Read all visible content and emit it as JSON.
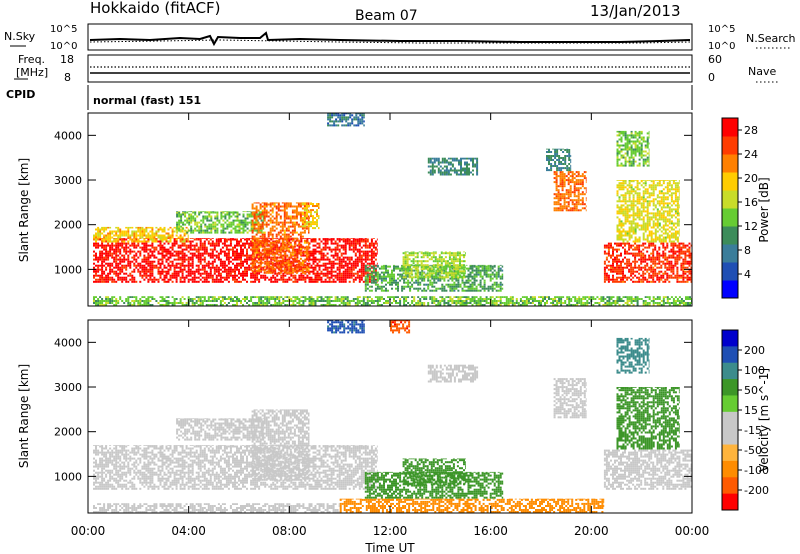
{
  "header": {
    "station": "Hokkaido (fitACF)",
    "beam": "Beam 07",
    "date": "13/Jan/2013"
  },
  "noise_panel": {
    "left_label": "N.Sky",
    "right_label": "N.Search",
    "left_ticks": [
      "10^5",
      "10^0"
    ],
    "right_ticks": [
      "10^5",
      "10^0"
    ]
  },
  "freq_panel": {
    "left_label_1": "Freq.",
    "left_label_2": "[MHz]",
    "right_label": "Nave",
    "left_ticks": [
      "18",
      "8"
    ],
    "right_ticks": [
      "60",
      "0"
    ]
  },
  "cpid_panel": {
    "label": "CPID",
    "program": "normal (fast) 151"
  },
  "colors": {
    "power": [
      "#0000ff",
      "#1f4fb4",
      "#3a7d9a",
      "#3c8c5a",
      "#66cc33",
      "#c8dc2a",
      "#ffcc00",
      "#ff8000",
      "#ff3c00",
      "#ff0000"
    ],
    "velocity": [
      "#ff0000",
      "#ff5a00",
      "#ff8c00",
      "#ffb43c",
      "#c8c8c8",
      "#c8c8c8",
      "#66cc33",
      "#3c9628",
      "#3c8c8c",
      "#1f4fb4",
      "#0000cc"
    ]
  },
  "chart_data": [
    {
      "type": "heatmap",
      "panel": "power",
      "ylabel": "Slant Range [km]",
      "ylim": [
        180,
        4500
      ],
      "y_ticks": [
        1000,
        2000,
        3000,
        4000
      ],
      "xlim": [
        0,
        24
      ],
      "colorbar": {
        "label": "Power [dB]",
        "range": [
          0,
          30
        ],
        "ticks": [
          4,
          8,
          12,
          16,
          20,
          24,
          28
        ]
      },
      "blobs": [
        {
          "t": [
            0.2,
            11.5
          ],
          "r": [
            700,
            1700
          ],
          "v": 27
        },
        {
          "t": [
            0.2,
            4.0
          ],
          "r": [
            1600,
            1950
          ],
          "v": 18
        },
        {
          "t": [
            3.5,
            7.0
          ],
          "r": [
            1800,
            2300
          ],
          "v": 12
        },
        {
          "t": [
            6.5,
            8.8
          ],
          "r": [
            900,
            2500
          ],
          "v": 22
        },
        {
          "t": [
            8.5,
            9.2
          ],
          "r": [
            1900,
            2500
          ],
          "v": 18
        },
        {
          "t": [
            11.0,
            16.5
          ],
          "r": [
            500,
            1100
          ],
          "v": 10
        },
        {
          "t": [
            12.5,
            15.0
          ],
          "r": [
            800,
            1400
          ],
          "v": 14
        },
        {
          "t": [
            13.5,
            15.5
          ],
          "r": [
            3100,
            3500
          ],
          "v": 8
        },
        {
          "t": [
            18.5,
            19.8
          ],
          "r": [
            2300,
            3200
          ],
          "v": 22
        },
        {
          "t": [
            18.2,
            19.2
          ],
          "r": [
            3200,
            3700
          ],
          "v": 8
        },
        {
          "t": [
            20.5,
            24.0
          ],
          "r": [
            700,
            1600
          ],
          "v": 25
        },
        {
          "t": [
            21.0,
            23.5
          ],
          "r": [
            1600,
            3000
          ],
          "v": 16
        },
        {
          "t": [
            21.0,
            22.3
          ],
          "r": [
            3300,
            4100
          ],
          "v": 12
        },
        {
          "t": [
            0.2,
            24.0
          ],
          "r": [
            180,
            400
          ],
          "v": 12
        },
        {
          "t": [
            9.5,
            11.0
          ],
          "r": [
            4200,
            4500
          ],
          "v": 6
        }
      ]
    },
    {
      "type": "heatmap",
      "panel": "velocity",
      "ylabel": "Slant Range [km]",
      "xlabel": "Time UT",
      "ylim": [
        180,
        4500
      ],
      "y_ticks": [
        1000,
        2000,
        3000,
        4000
      ],
      "xlim": [
        0,
        24
      ],
      "x_ticks": [
        "00:00",
        "04:00",
        "08:00",
        "12:00",
        "16:00",
        "20:00",
        "00:00"
      ],
      "colorbar": {
        "label": "Velocity [m s^-1]",
        "tick_labels": [
          "200",
          "100",
          "50",
          "15",
          "-15",
          "-50",
          "-100",
          "-200"
        ]
      },
      "blobs": [
        {
          "t": [
            0.2,
            11.5
          ],
          "r": [
            700,
            1700
          ],
          "v": 0
        },
        {
          "t": [
            3.5,
            7.0
          ],
          "r": [
            1800,
            2300
          ],
          "v": 0
        },
        {
          "t": [
            6.5,
            8.8
          ],
          "r": [
            900,
            2500
          ],
          "v": 0
        },
        {
          "t": [
            11.0,
            16.5
          ],
          "r": [
            500,
            1100
          ],
          "v": 60
        },
        {
          "t": [
            12.5,
            15.0
          ],
          "r": [
            800,
            1400
          ],
          "v": 60
        },
        {
          "t": [
            13.5,
            15.5
          ],
          "r": [
            3100,
            3500
          ],
          "v": 0
        },
        {
          "t": [
            18.5,
            19.8
          ],
          "r": [
            2300,
            3200
          ],
          "v": 0
        },
        {
          "t": [
            20.5,
            24.0
          ],
          "r": [
            700,
            1600
          ],
          "v": 0
        },
        {
          "t": [
            21.0,
            23.5
          ],
          "r": [
            1600,
            3000
          ],
          "v": 60
        },
        {
          "t": [
            21.0,
            22.3
          ],
          "r": [
            3300,
            4100
          ],
          "v": 120
        },
        {
          "t": [
            10.0,
            20.5
          ],
          "r": [
            180,
            500
          ],
          "v": -60
        },
        {
          "t": [
            0.2,
            10.0
          ],
          "r": [
            180,
            400
          ],
          "v": 0
        },
        {
          "t": [
            12.0,
            12.8
          ],
          "r": [
            4200,
            4500
          ],
          "v": -200
        },
        {
          "t": [
            9.5,
            11.0
          ],
          "r": [
            4200,
            4500
          ],
          "v": 200
        }
      ]
    }
  ]
}
